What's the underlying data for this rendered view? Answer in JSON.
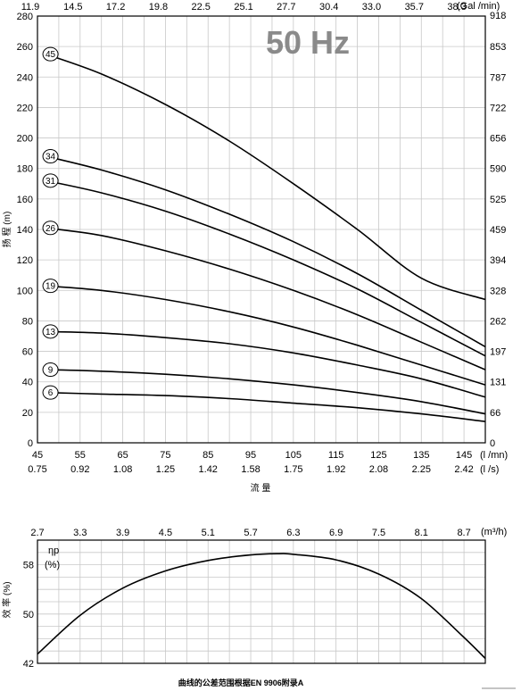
{
  "chart_data": [
    {
      "type": "line",
      "title": "50 Hz",
      "ylabel": "扬 程 (m)",
      "xlabel": "流 量",
      "xlim": [
        45,
        150
      ],
      "ylim": [
        0,
        280
      ],
      "yticks": [
        0,
        20,
        40,
        60,
        80,
        100,
        120,
        140,
        160,
        180,
        200,
        220,
        240,
        260,
        280
      ],
      "x_ticks_m3h": [
        "45",
        "55",
        "65",
        "75",
        "85",
        "95",
        "105",
        "115",
        "125",
        "135",
        "145"
      ],
      "x_ticks_ls": [
        "0.75",
        "0.92",
        "1.08",
        "1.25",
        "1.42",
        "1.58",
        "1.75",
        "1.92",
        "2.08",
        "2.25",
        "2.42"
      ],
      "x_unit_m3h": "(l /mn)",
      "x_unit_ls": "(l /s)",
      "top_ticks": [
        "11.9",
        "14.5",
        "17.2",
        "19.8",
        "22.5",
        "25.1",
        "27.7",
        "30.4",
        "33.0",
        "35.7",
        "38.3"
      ],
      "top_unit": "(Gal /min)",
      "right_ticks": [
        "918",
        "853",
        "787",
        "722",
        "656",
        "590",
        "525",
        "459",
        "394",
        "328",
        "262",
        "197",
        "131",
        "66",
        "0"
      ],
      "x": [
        47,
        60,
        75,
        90,
        105,
        120,
        135,
        150
      ],
      "series": [
        {
          "name": "45",
          "values": [
            255,
            242,
            222,
            198,
            170,
            140,
            108,
            94
          ]
        },
        {
          "name": "34",
          "values": [
            188,
            179,
            166,
            150,
            132,
            111,
            87,
            63
          ]
        },
        {
          "name": "31",
          "values": [
            172,
            164,
            152,
            137,
            120,
            101,
            79,
            57
          ]
        },
        {
          "name": "26",
          "values": [
            141,
            136,
            126,
            114,
            100,
            84,
            66,
            48
          ]
        },
        {
          "name": "19",
          "values": [
            103,
            100,
            94,
            86,
            76,
            64,
            51,
            38
          ]
        },
        {
          "name": "13",
          "values": [
            73,
            72,
            69,
            65,
            59,
            51,
            42,
            30
          ]
        },
        {
          "name": "9",
          "values": [
            48,
            47,
            45,
            42,
            38,
            33,
            27,
            19
          ]
        },
        {
          "name": "6",
          "values": [
            33,
            32,
            31,
            29,
            26,
            23,
            19,
            14
          ]
        }
      ]
    },
    {
      "type": "line",
      "title": "",
      "ylabel": "效 率 (%)",
      "series_label": "ηp",
      "series_unit": "(%)",
      "xlim": [
        2.7,
        9.0
      ],
      "ylim": [
        42,
        62
      ],
      "yticks": [
        "58",
        "50",
        "42"
      ],
      "x_ticks": [
        "2.7",
        "3.3",
        "3.9",
        "4.5",
        "5.1",
        "5.7",
        "6.3",
        "6.9",
        "7.5",
        "8.1",
        "8.7"
      ],
      "x_unit": "(m³/h)",
      "x": [
        2.7,
        3.3,
        3.9,
        4.5,
        5.1,
        5.7,
        6.1,
        6.3,
        6.9,
        7.5,
        8.1,
        8.7,
        9.0
      ],
      "series": [
        {
          "name": "",
          "values": [
            43.5,
            49.8,
            54.2,
            57.0,
            58.7,
            59.6,
            59.8,
            59.7,
            58.8,
            56.5,
            52.5,
            46.2,
            42.8
          ]
        }
      ]
    }
  ],
  "footer": "曲线的公差范围根据EN 9906附录A"
}
